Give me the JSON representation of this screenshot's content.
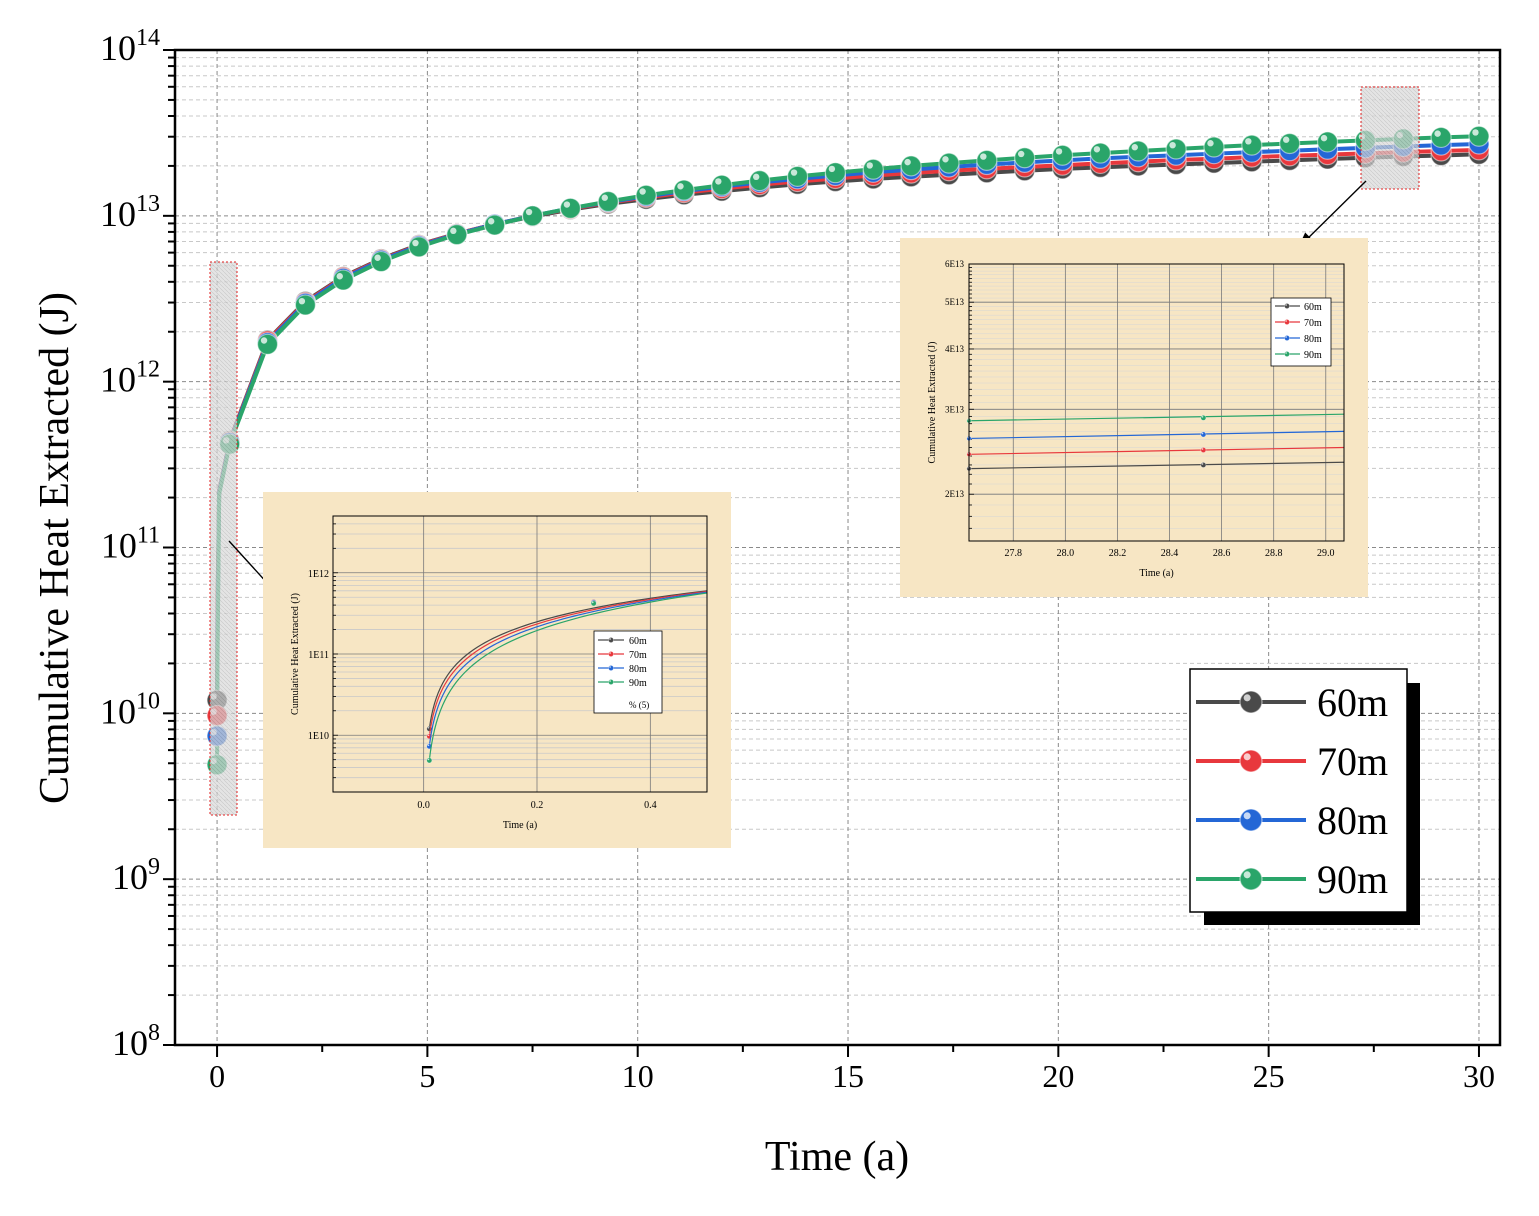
{
  "colors": {
    "s60": "#4a4a4a",
    "s70": "#e8383d",
    "s80": "#2467d6",
    "s90": "#2aa56a",
    "inset_bg": "#f7e6c4"
  },
  "chart_data": [
    {
      "id": "main",
      "type": "line",
      "title": "",
      "xlabel": "Time (a)",
      "ylabel": "Cumulative Heat Extracted (J)",
      "xlim": [
        -1,
        30.5
      ],
      "ylim": [
        100000000,
        100000000000000
      ],
      "yscale": "log",
      "xticks": [
        0,
        5,
        10,
        15,
        20,
        25,
        30
      ],
      "yticks": [
        {
          "value": 100000000,
          "base": "10",
          "exp": "8"
        },
        {
          "value": 1000000000,
          "base": "10",
          "exp": "9"
        },
        {
          "value": 10000000000,
          "base": "10",
          "exp": "10"
        },
        {
          "value": 100000000000,
          "base": "10",
          "exp": "11"
        },
        {
          "value": 1000000000000,
          "base": "10",
          "exp": "12"
        },
        {
          "value": 10000000000000,
          "base": "10",
          "exp": "13"
        },
        {
          "value": 100000000000000,
          "base": "10",
          "exp": "14"
        }
      ],
      "grid": true,
      "legend_position": "bottom-right",
      "x": [
        0.3,
        1.2,
        2.1,
        3.0,
        3.9,
        4.8,
        5.7,
        6.6,
        7.5,
        8.4,
        9.3,
        10.2,
        11.1,
        12.0,
        12.9,
        13.8,
        14.7,
        15.6,
        16.5,
        17.4,
        18.3,
        19.2,
        20.1,
        21.0,
        21.9,
        22.8,
        23.7,
        24.6,
        25.5,
        26.4,
        27.3,
        28.2,
        29.1,
        30.0
      ],
      "series": [
        {
          "name": "60m",
          "color_key": "s60",
          "y0": 12000000000,
          "values": [
            440000000000,
            1780000000000,
            3050000000000,
            4300000000000,
            5500000000000,
            6700000000000,
            7800000000000,
            8900000000000,
            9900000000000,
            10900000000000,
            11800000000000,
            12600000000000,
            13400000000000,
            14100000000000,
            14800000000000,
            15500000000000,
            16100000000000,
            16700000000000,
            17200000000000,
            17700000000000,
            18200000000000,
            18700000000000,
            19200000000000,
            19600000000000,
            20000000000000,
            20400000000000,
            20800000000000,
            21200000000000,
            21600000000000,
            22000000000000,
            22400000000000,
            22800000000000,
            23100000000000,
            23500000000000
          ]
        },
        {
          "name": "70m",
          "color_key": "s70",
          "y0": 9700000000,
          "values": [
            435000000000,
            1760000000000,
            3010000000000,
            4260000000000,
            5450000000000,
            6650000000000,
            7800000000000,
            8900000000000,
            10000000000000,
            11000000000000,
            12000000000000,
            12900000000000,
            13800000000000,
            14600000000000,
            15400000000000,
            16100000000000,
            16800000000000,
            17500000000000,
            18100000000000,
            18700000000000,
            19200000000000,
            19700000000000,
            20200000000000,
            20700000000000,
            21200000000000,
            21700000000000,
            22100000000000,
            22600000000000,
            23000000000000,
            23400000000000,
            23800000000000,
            24200000000000,
            24600000000000,
            25000000000000
          ]
        },
        {
          "name": "80m",
          "color_key": "s80",
          "y0": 7300000000,
          "values": [
            430000000000,
            1720000000000,
            2970000000000,
            4200000000000,
            5400000000000,
            6600000000000,
            7750000000000,
            8900000000000,
            10000000000000,
            11100000000000,
            12100000000000,
            13100000000000,
            14100000000000,
            15000000000000,
            15900000000000,
            16700000000000,
            17500000000000,
            18300000000000,
            19000000000000,
            19700000000000,
            20400000000000,
            21000000000000,
            21600000000000,
            22200000000000,
            22700000000000,
            23200000000000,
            23700000000000,
            24200000000000,
            24700000000000,
            25200000000000,
            25700000000000,
            26200000000000,
            26700000000000,
            27100000000000
          ]
        },
        {
          "name": "90m",
          "color_key": "s90",
          "y0": 4900000000,
          "values": [
            420000000000,
            1680000000000,
            2900000000000,
            4100000000000,
            5300000000000,
            6500000000000,
            7700000000000,
            8800000000000,
            10000000000000,
            11100000000000,
            12200000000000,
            13300000000000,
            14300000000000,
            15300000000000,
            16300000000000,
            17300000000000,
            18200000000000,
            19100000000000,
            20000000000000,
            20800000000000,
            21600000000000,
            22400000000000,
            23200000000000,
            23900000000000,
            24600000000000,
            25300000000000,
            26000000000000,
            26700000000000,
            27300000000000,
            27900000000000,
            28500000000000,
            29100000000000,
            29700000000000,
            30200000000000
          ]
        }
      ]
    },
    {
      "id": "inset_left",
      "type": "line",
      "xlabel": "Time (a)",
      "ylabel": "Cumulative Heat Extracted (J)",
      "xlim": [
        -0.16,
        0.5
      ],
      "ylim": [
        2000000000,
        5000000000000
      ],
      "yscale": "log",
      "xticks": [
        {
          "value": 0,
          "label": "0.0"
        },
        {
          "value": 0.2,
          "label": "0.2"
        },
        {
          "value": 0.4,
          "label": "0.4"
        }
      ],
      "yticks": [
        {
          "value": 10000000000,
          "label": "1E10"
        },
        {
          "value": 100000000000,
          "label": "1E11"
        },
        {
          "value": 1000000000000,
          "label": "1E12"
        }
      ],
      "grid": true,
      "legend_position": "center-right",
      "legend_extra": "% (5)",
      "series": [
        {
          "name": "60m",
          "color_key": "s60",
          "start": [
            0.01,
            12000000000
          ],
          "marker": [
            0.3,
            440000000000
          ]
        },
        {
          "name": "70m",
          "color_key": "s70",
          "start": [
            0.01,
            9700000000
          ],
          "marker": [
            0.3,
            435000000000
          ]
        },
        {
          "name": "80m",
          "color_key": "s80",
          "start": [
            0.01,
            7300000000
          ],
          "marker": [
            0.3,
            430000000000
          ]
        },
        {
          "name": "90m",
          "color_key": "s90",
          "start": [
            0.01,
            4900000000
          ],
          "marker": [
            0.3,
            420000000000
          ]
        }
      ],
      "end_value": 600000000000
    },
    {
      "id": "inset_right",
      "type": "line",
      "xlabel": "Time (a)",
      "ylabel": "Cumulative Heat Extracted (J)",
      "xlim": [
        27.63,
        29.07
      ],
      "ylim": [
        16000000000000,
        60000000000000
      ],
      "yscale": "log",
      "xticks": [
        {
          "value": 27.8,
          "label": "27.8"
        },
        {
          "value": 28.0,
          "label": "28.0"
        },
        {
          "value": 28.2,
          "label": "28.2"
        },
        {
          "value": 28.4,
          "label": "28.4"
        },
        {
          "value": 28.6,
          "label": "28.6"
        },
        {
          "value": 28.8,
          "label": "28.8"
        },
        {
          "value": 29.0,
          "label": "29.0"
        }
      ],
      "yticks": [
        {
          "value": 20000000000000,
          "label": "2E13"
        },
        {
          "value": 30000000000000,
          "label": "3E13"
        },
        {
          "value": 40000000000000,
          "label": "4E13"
        },
        {
          "value": 50000000000000,
          "label": "5E13"
        },
        {
          "value": 60000000000000,
          "label": "6E13"
        }
      ],
      "grid": true,
      "legend_position": "top-right",
      "series": [
        {
          "name": "60m",
          "color_key": "s60",
          "y_start": 22600000000000,
          "y_end": 23300000000000,
          "marker": [
            28.53,
            23000000000000
          ]
        },
        {
          "name": "70m",
          "color_key": "s70",
          "y_start": 24200000000000,
          "y_end": 25000000000000,
          "marker": [
            28.53,
            24700000000000
          ]
        },
        {
          "name": "80m",
          "color_key": "s80",
          "y_start": 26100000000000,
          "y_end": 27000000000000,
          "marker": [
            28.53,
            26600000000000
          ]
        },
        {
          "name": "90m",
          "color_key": "s90",
          "y_start": 28400000000000,
          "y_end": 29300000000000,
          "marker": [
            28.53,
            28800000000000
          ]
        }
      ]
    }
  ]
}
